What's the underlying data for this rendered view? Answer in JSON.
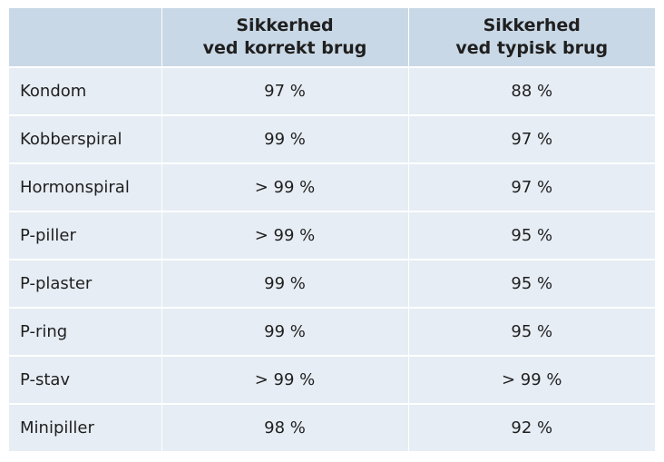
{
  "table": {
    "header": {
      "corner": "",
      "col1_line1": "Sikkerhed",
      "col1_line2": "ved korrekt brug",
      "col2_line1": "Sikkerhed",
      "col2_line2": "ved typisk brug"
    },
    "rows": [
      {
        "method": "Kondom",
        "correct": "97 %",
        "typical": "88 %"
      },
      {
        "method": "Kobberspiral",
        "correct": "99 %",
        "typical": "97 %"
      },
      {
        "method": "Hormonspiral",
        "correct": "> 99 %",
        "typical": "97 %"
      },
      {
        "method": "P-piller",
        "correct": "> 99 %",
        "typical": "95 %"
      },
      {
        "method": "P-plaster",
        "correct": "99 %",
        "typical": "95 %"
      },
      {
        "method": "P-ring",
        "correct": "99 %",
        "typical": "95 %"
      },
      {
        "method": "P-stav",
        "correct": "> 99 %",
        "typical": "> 99 %"
      },
      {
        "method": "Minipiller",
        "correct": "98 %",
        "typical": "92 %"
      }
    ]
  }
}
